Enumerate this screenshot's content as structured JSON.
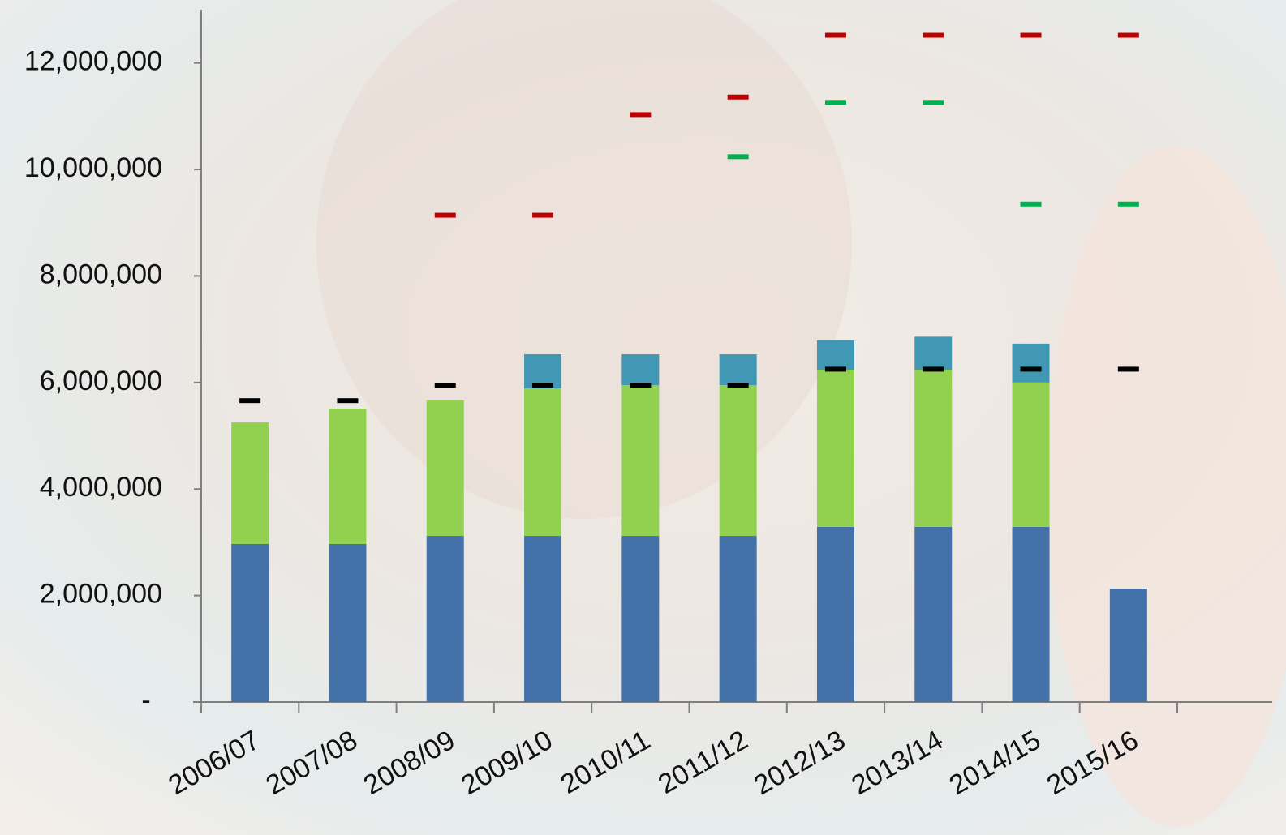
{
  "chart_data": {
    "type": "bar",
    "stacked": true,
    "categories": [
      "2006/07",
      "2007/08",
      "2008/09",
      "2009/10",
      "2010/11",
      "2011/12",
      "2012/13",
      "2013/14",
      "2014/15",
      "2015/16",
      null
    ],
    "series": [
      {
        "color": "#4472a8",
        "values": [
          2970000,
          2970000,
          3120000,
          3120000,
          3120000,
          3120000,
          3290000,
          3290000,
          3290000,
          2130000,
          null
        ]
      },
      {
        "color": "#92d050",
        "values": [
          2280000,
          2540000,
          2550000,
          2770000,
          2830000,
          2830000,
          2950000,
          2950000,
          2710000,
          null,
          null
        ]
      },
      {
        "color": "#4198b4",
        "values": [
          null,
          null,
          null,
          640000,
          580000,
          580000,
          550000,
          620000,
          730000,
          null,
          null
        ]
      }
    ],
    "markers": [
      {
        "color": "#000000",
        "values": [
          5660000,
          5660000,
          5950000,
          5950000,
          5950000,
          5950000,
          6250000,
          6250000,
          6250000,
          6250000,
          null
        ]
      },
      {
        "color": "#00b050",
        "values": [
          null,
          null,
          null,
          null,
          null,
          10240000,
          11260000,
          11260000,
          9350000,
          9350000,
          null
        ]
      },
      {
        "color": "#c00000",
        "values": [
          null,
          null,
          9140000,
          9140000,
          11030000,
          11360000,
          12520000,
          12520000,
          12520000,
          12520000,
          null
        ]
      }
    ],
    "ylim": [
      0,
      13000000
    ],
    "yticks": [
      {
        "value": 0,
        "label": "-"
      },
      {
        "value": 2000000,
        "label": "2,000,000"
      },
      {
        "value": 4000000,
        "label": "4,000,000"
      },
      {
        "value": 6000000,
        "label": "6,000,000"
      },
      {
        "value": 8000000,
        "label": "8,000,000"
      },
      {
        "value": 10000000,
        "label": "10,000,000"
      },
      {
        "value": 12000000,
        "label": "12,000,000"
      }
    ],
    "grid": false
  }
}
